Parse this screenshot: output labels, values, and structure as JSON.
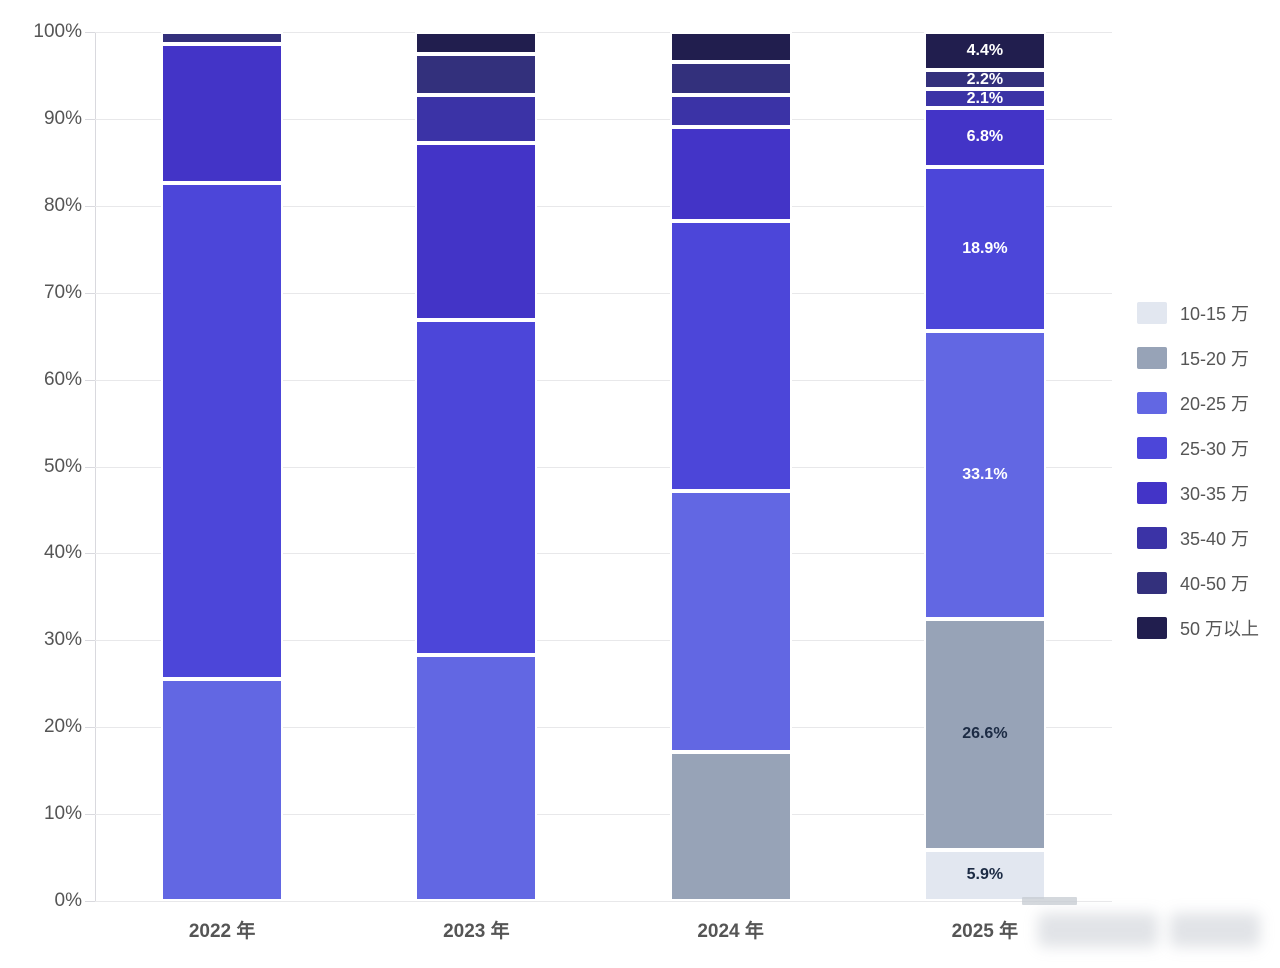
{
  "page": {
    "background": "#ffffff",
    "text_color": "#555555",
    "grid_color": "#e8e8ea",
    "axis_color": "#d9d9de"
  },
  "chart_data": {
    "type": "bar",
    "variant": "stacked-100-percent",
    "title": "",
    "xlabel": "",
    "ylabel": "",
    "ylim": [
      0,
      100
    ],
    "grid": true,
    "legend_position": "right",
    "categories": [
      "2022 年",
      "2023 年",
      "2024 年",
      "2025 年"
    ],
    "y_ticks": [
      "0%",
      "10%",
      "20%",
      "30%",
      "40%",
      "50%",
      "60%",
      "70%",
      "80%",
      "90%",
      "100%"
    ],
    "series": [
      {
        "name": "10-15 万",
        "color": "#e2e7f0",
        "label_color": "#1c2b44",
        "values": [
          0,
          0,
          0,
          5.9
        ],
        "labels": [
          "",
          "",
          "",
          "5.9%"
        ]
      },
      {
        "name": "15-20 万",
        "color": "#97a3b7",
        "label_color": "#1c2b44",
        "values": [
          0,
          0,
          17.2,
          26.6
        ],
        "labels": [
          "",
          "",
          "",
          "26.6%"
        ]
      },
      {
        "name": "20-25 万",
        "color": "#6267e3",
        "label_color": "#ffffff",
        "values": [
          25.5,
          28.3,
          30.0,
          33.1
        ],
        "labels": [
          "",
          "",
          "",
          "33.1%"
        ]
      },
      {
        "name": "25-30 万",
        "color": "#4c46d9",
        "label_color": "#ffffff",
        "values": [
          57.1,
          38.6,
          31.1,
          18.9
        ],
        "labels": [
          "",
          "",
          "",
          "18.9%"
        ]
      },
      {
        "name": "30-35 万",
        "color": "#4334c7",
        "label_color": "#ffffff",
        "values": [
          16.0,
          20.3,
          10.8,
          6.8
        ],
        "labels": [
          "",
          "",
          "",
          "6.8%"
        ]
      },
      {
        "name": "35-40 万",
        "color": "#3b33a6",
        "label_color": "#ffffff",
        "values": [
          0,
          5.5,
          3.7,
          2.1
        ],
        "labels": [
          "",
          "",
          "",
          "2.1%"
        ]
      },
      {
        "name": "40-50 万",
        "color": "#33307c",
        "label_color": "#ffffff",
        "values": [
          1.4,
          4.8,
          3.7,
          2.2
        ],
        "labels": [
          "",
          "",
          "",
          "2.2%"
        ]
      },
      {
        "name": "50 万以上",
        "color": "#211e4e",
        "label_color": "#ffffff",
        "values": [
          0,
          2.5,
          3.5,
          4.4
        ],
        "labels": [
          "",
          "",
          "",
          "4.4%"
        ]
      }
    ]
  },
  "watermark": {
    "present": true,
    "legible_text": ""
  }
}
